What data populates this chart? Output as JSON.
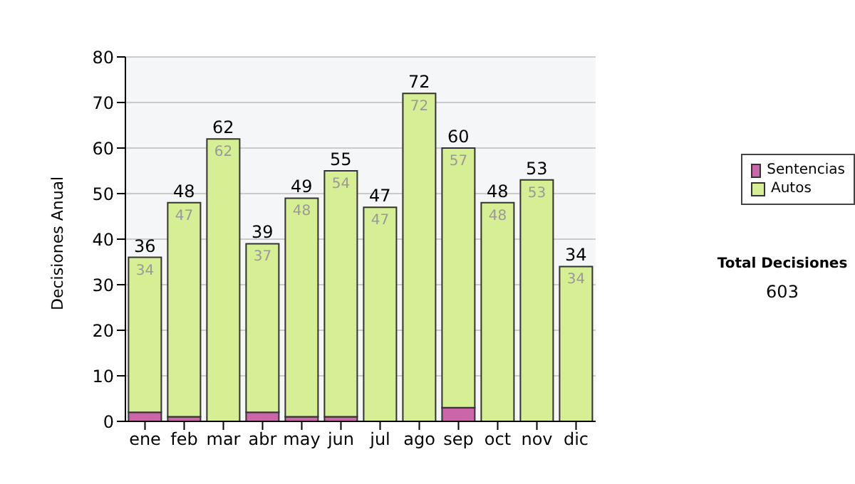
{
  "chart_data": {
    "type": "bar",
    "stacked": true,
    "ylabel": "Decisiones Anual",
    "categories": [
      "ene",
      "feb",
      "mar",
      "abr",
      "may",
      "jun",
      "jul",
      "ago",
      "sep",
      "oct",
      "nov",
      "dic"
    ],
    "series": [
      {
        "name": "Sentencias",
        "color": "#cc66aa",
        "values": [
          2,
          1,
          0,
          2,
          1,
          1,
          0,
          0,
          3,
          0,
          0,
          0
        ]
      },
      {
        "name": "Autos",
        "color": "#d6ee94",
        "values": [
          34,
          47,
          62,
          37,
          48,
          54,
          47,
          72,
          57,
          48,
          53,
          34
        ],
        "value_labels": [
          "34",
          "47",
          "62",
          "37",
          "48",
          "54",
          "47",
          "72",
          "57",
          "48",
          "53",
          "34"
        ]
      }
    ],
    "totals": [
      "36",
      "48",
      "62",
      "39",
      "49",
      "55",
      "47",
      "72",
      "60",
      "48",
      "53",
      "34"
    ],
    "ylim": [
      0,
      80
    ],
    "yticks": [
      0,
      10,
      20,
      30,
      40,
      50,
      60,
      70,
      80
    ],
    "grid": "y",
    "legend": "right",
    "annotations": [
      "Total Decisiones",
      "603"
    ]
  }
}
